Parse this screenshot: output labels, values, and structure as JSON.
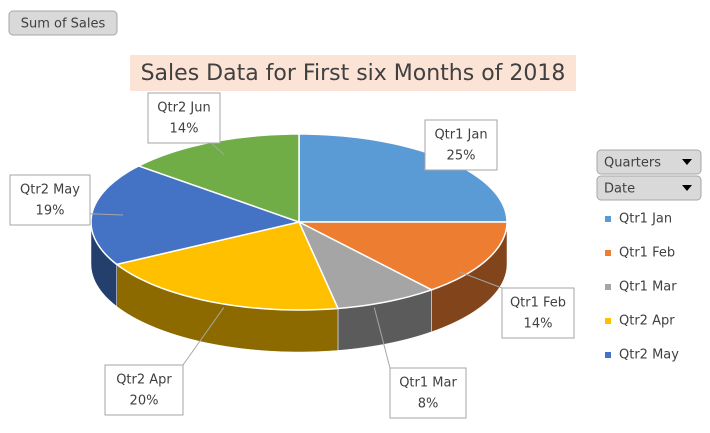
{
  "field_buttons": {
    "values": "Sum of Sales",
    "legend": [
      "Quarters",
      "Date"
    ]
  },
  "chart_data": {
    "type": "pie",
    "title": "Sales Data for First six Months of 2018",
    "categories": [
      "Qtr1 Jan",
      "Qtr1 Feb",
      "Qtr1 Mar",
      "Qtr2 Apr",
      "Qtr2 May",
      "Qtr2 Jun"
    ],
    "values": [
      25,
      14,
      8,
      20,
      19,
      14
    ],
    "value_labels": [
      "25%",
      "14%",
      "8%",
      "20%",
      "19%",
      "14%"
    ],
    "colors": [
      "#5b9bd5",
      "#ed7d31",
      "#a5a5a5",
      "#ffc000",
      "#4472c4",
      "#70ad47"
    ],
    "legend": "right"
  }
}
